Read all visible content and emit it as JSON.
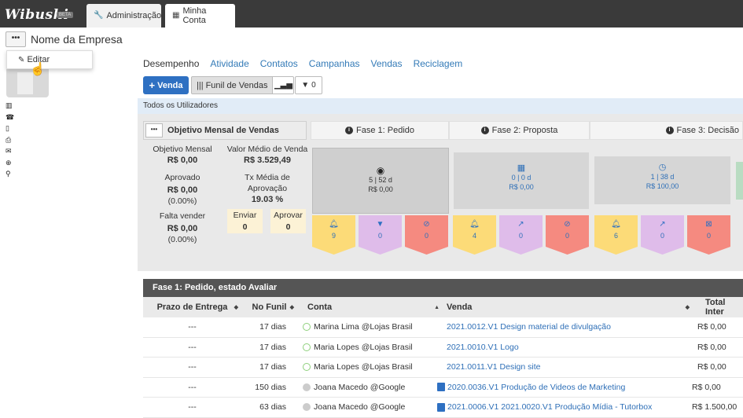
{
  "app": {
    "logo": "Wibushi",
    "beta": "BETA"
  },
  "top_tabs": [
    {
      "label": "Administração",
      "icon": "wrench-icon"
    },
    {
      "label": "Minha Conta",
      "icon": "calendar-icon"
    }
  ],
  "company": {
    "name": "Nome da Empresa",
    "menu_button": "•••"
  },
  "dropdown": {
    "edit_label": "Editar"
  },
  "sub_tabs": [
    "Desempenho",
    "Atividade",
    "Contatos",
    "Campanhas",
    "Vendas",
    "Reciclagem"
  ],
  "toolbar": {
    "venda_label": "Venda",
    "funil_label": "Funil de Vendas",
    "filter_count": "0"
  },
  "users_bar": "Todos os Utilizadores",
  "summary": {
    "title": "Objetivo Mensal de Vendas",
    "menu_button": "•••",
    "objetivo_label": "Objetivo Mensal",
    "objetivo_value": "R$ 0,00",
    "valor_medio_label": "Valor Médio de Venda",
    "valor_medio_value": "R$ 3.529,49",
    "aprovado_label": "Aprovado",
    "aprovado_value": "R$ 0,00",
    "aprovado_pct": "(0.00%)",
    "tx_label": "Tx Média de Aprovação",
    "tx_value": "19.03 %",
    "falta_label": "Falta vender",
    "falta_value": "R$ 0,00",
    "falta_pct": "(0.00%)",
    "enviar_label": "Enviar",
    "enviar_value": "0",
    "aprovar_label": "Aprovar",
    "aprovar_value": "0"
  },
  "phases": [
    {
      "title": "Fase 1: Pedido",
      "stats": "5 | 52 d",
      "value": "R$ 0,00",
      "icon": "eye-icon",
      "tags": [
        "9",
        "0",
        "0"
      ]
    },
    {
      "title": "Fase 2: Proposta",
      "stats": "0 | 0 d",
      "value": "R$ 0,00",
      "icon": "calculator-icon",
      "tags": [
        "4",
        "0",
        "0"
      ]
    },
    {
      "title": "Fase 3: Decisão",
      "stats": "1 | 38 d",
      "value": "R$ 100,00",
      "icon": "clock-icon",
      "tags": [
        "6",
        "0",
        "0"
      ]
    }
  ],
  "table": {
    "section_title": "Fase 1: Pedido, estado Avaliar",
    "headers": [
      "Prazo de Entrega",
      "No Funil",
      "Conta",
      "Venda",
      "Total Inter"
    ],
    "rows": [
      {
        "prazo": "---",
        "funil": "17 dias",
        "conta": "Marina Lima @Lojas Brasil",
        "venda": "2021.0012.V1 Design material de divulgação",
        "total": "R$ 0,00",
        "status": "green",
        "doc": false
      },
      {
        "prazo": "---",
        "funil": "17 dias",
        "conta": "Maria Lopes @Lojas Brasil",
        "venda": "2021.0010.V1 Logo",
        "total": "R$ 0,00",
        "status": "green",
        "doc": false
      },
      {
        "prazo": "---",
        "funil": "17 dias",
        "conta": "Maria Lopes @Lojas Brasil",
        "venda": "2021.0011.V1 Design site",
        "total": "R$ 0,00",
        "status": "green",
        "doc": false
      },
      {
        "prazo": "---",
        "funil": "150 dias",
        "conta": "Joana Macedo @Google",
        "venda": "2020.0036.V1 Produção de Videos de Marketing",
        "total": "R$ 0,00",
        "status": "grey",
        "doc": true
      },
      {
        "prazo": "---",
        "funil": "63 dias",
        "conta": "Joana Macedo @Google",
        "venda": "2021.0006.V1 2021.0020.V1 Produção Mídia - Tutorbox",
        "total": "R$ 1.500,00",
        "status": "grey",
        "doc": true
      }
    ]
  },
  "colors": {
    "topbar": "#3a3a3a",
    "primary": "#2e70c2",
    "tag_yellow": "#fcdb78",
    "tag_purple": "#dfbcea",
    "tag_red": "#f58a80"
  }
}
